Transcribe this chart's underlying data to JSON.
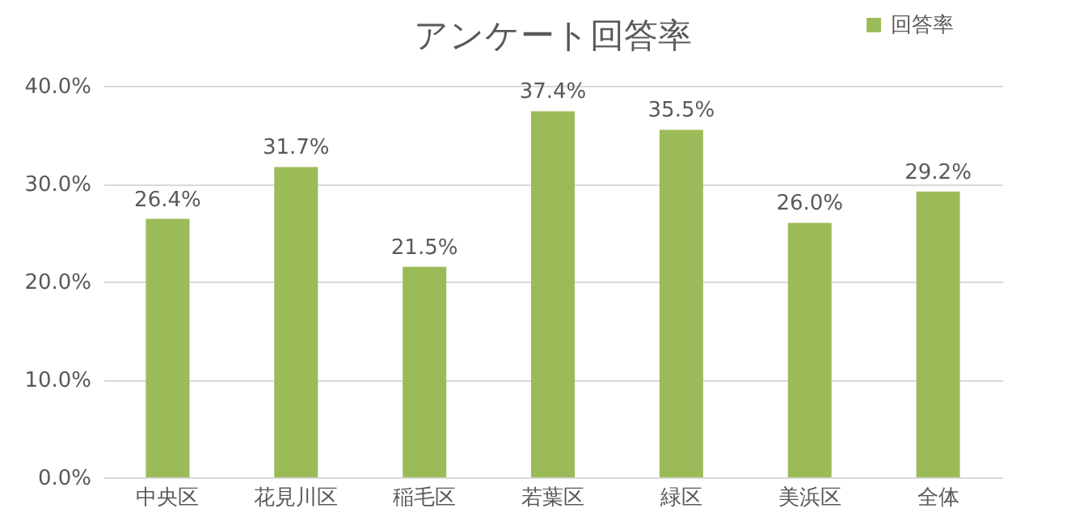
{
  "chart_data": {
    "type": "bar",
    "title": "アンケート回答率",
    "categories": [
      "中央区",
      "花見川区",
      "稲毛区",
      "若葉区",
      "緑区",
      "美浜区",
      "全体"
    ],
    "series": [
      {
        "name": "回答率",
        "color": "#9bbb59",
        "values": [
          26.4,
          31.7,
          21.5,
          37.4,
          35.5,
          26.0,
          29.2
        ],
        "value_labels": [
          "26.4%",
          "31.7%",
          "21.5%",
          "37.4%",
          "35.5%",
          "26.0%",
          "29.2%"
        ]
      }
    ],
    "ylim": [
      0,
      40
    ],
    "yticks": [
      {
        "value": 0,
        "label": "0.0%"
      },
      {
        "value": 10,
        "label": "10.0%"
      },
      {
        "value": 20,
        "label": "20.0%"
      },
      {
        "value": 30,
        "label": "30.0%"
      },
      {
        "value": 40,
        "label": "40.0%"
      }
    ],
    "grid": "y",
    "legend": "top right"
  }
}
